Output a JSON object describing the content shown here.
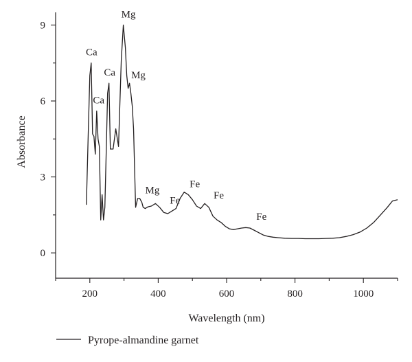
{
  "chart_data": {
    "type": "line",
    "xlabel": "Wavelength (nm)",
    "ylabel": "Absorbance",
    "xlim": [
      100,
      1100
    ],
    "ylim": [
      -1,
      9.5
    ],
    "x_ticks": [
      200,
      400,
      600,
      800,
      1000
    ],
    "y_ticks": [
      0,
      3,
      6,
      9
    ],
    "grid": false,
    "legend_placement": "bottom-left",
    "series": [
      {
        "name": "Pyrope-almandine garnet",
        "color": "#231f20",
        "x": [
          190,
          195,
          200,
          204,
          208,
          212,
          216,
          220,
          224,
          228,
          232,
          236,
          240,
          244,
          248,
          252,
          256,
          260,
          264,
          268,
          276,
          284,
          292,
          298,
          304,
          308,
          312,
          316,
          320,
          324,
          328,
          334,
          340,
          346,
          352,
          356,
          362,
          370,
          380,
          392,
          404,
          416,
          428,
          440,
          452,
          464,
          476,
          488,
          500,
          512,
          524,
          536,
          548,
          560,
          572,
          584,
          596,
          608,
          620,
          632,
          644,
          656,
          668,
          680,
          694,
          708,
          722,
          736,
          750,
          770,
          790,
          810,
          830,
          850,
          870,
          890,
          910,
          930,
          950,
          970,
          990,
          1010,
          1030,
          1050,
          1070,
          1085,
          1100
        ],
        "y": [
          1.9,
          4.5,
          7.0,
          7.5,
          4.7,
          4.6,
          3.9,
          5.6,
          4.5,
          4.2,
          1.3,
          2.3,
          1.3,
          1.8,
          4.0,
          6.3,
          6.7,
          4.1,
          4.1,
          4.1,
          4.9,
          4.2,
          7.6,
          9.0,
          8.1,
          7.0,
          6.5,
          6.7,
          6.3,
          5.8,
          4.9,
          1.8,
          2.15,
          2.15,
          2.0,
          1.8,
          1.75,
          1.82,
          1.85,
          1.95,
          1.8,
          1.6,
          1.55,
          1.65,
          1.75,
          2.15,
          2.4,
          2.3,
          2.1,
          1.85,
          1.75,
          1.95,
          1.8,
          1.45,
          1.3,
          1.2,
          1.05,
          0.95,
          0.92,
          0.95,
          0.98,
          1.0,
          0.98,
          0.9,
          0.8,
          0.7,
          0.65,
          0.62,
          0.6,
          0.58,
          0.57,
          0.57,
          0.56,
          0.56,
          0.56,
          0.57,
          0.58,
          0.6,
          0.65,
          0.72,
          0.82,
          0.98,
          1.2,
          1.5,
          1.8,
          2.05,
          2.1
        ]
      }
    ],
    "annotations": [
      {
        "text": "Ca",
        "x": 205,
        "y": 7.8
      },
      {
        "text": "Ca",
        "x": 226,
        "y": 5.9
      },
      {
        "text": "Ca",
        "x": 258,
        "y": 7.0
      },
      {
        "text": "Mg",
        "x": 313,
        "y": 9.3
      },
      {
        "text": "Mg",
        "x": 342,
        "y": 6.9
      },
      {
        "text": "Mg",
        "x": 383,
        "y": 2.35
      },
      {
        "text": "Fe",
        "x": 449,
        "y": 1.95
      },
      {
        "text": "Fe",
        "x": 507,
        "y": 2.6
      },
      {
        "text": "Fe",
        "x": 577,
        "y": 2.15
      },
      {
        "text": "Fe",
        "x": 702,
        "y": 1.3
      }
    ]
  }
}
